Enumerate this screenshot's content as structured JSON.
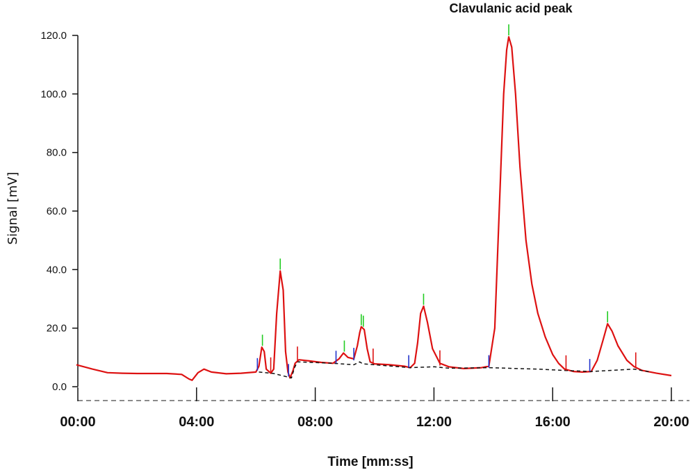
{
  "chart_data": {
    "type": "line",
    "title": "",
    "xlabel": "Time [mm:ss]",
    "ylabel": "Signal [mV]",
    "annotation": "Clavulanic acid peak",
    "xlim": [
      0,
      20
    ],
    "ylim": [
      0,
      120
    ],
    "x_ticks": [
      {
        "x": 0,
        "label": "00:00"
      },
      {
        "x": 4,
        "label": "04:00"
      },
      {
        "x": 8,
        "label": "08:00"
      },
      {
        "x": 12,
        "label": "12:00"
      },
      {
        "x": 16,
        "label": "16:00"
      },
      {
        "x": 20,
        "label": "20:00"
      }
    ],
    "y_ticks": [
      {
        "y": 0,
        "label": "0.0"
      },
      {
        "y": 20,
        "label": "20.0"
      },
      {
        "y": 40,
        "label": "40.0"
      },
      {
        "y": 60,
        "label": "60.0"
      },
      {
        "y": 80,
        "label": "80.0"
      },
      {
        "y": 100,
        "label": "100.0"
      },
      {
        "y": 120,
        "label": "120.0"
      }
    ],
    "colors": {
      "signal": "#dd1111",
      "baseline": "#111111",
      "peak_start": "#2233cc",
      "peak_apex": "#22cc22",
      "peak_end": "#dd1111"
    },
    "series": [
      {
        "style": "solid",
        "points": [
          [
            -0.05,
            7.5
          ],
          [
            0.5,
            6.0
          ],
          [
            1.0,
            4.8
          ],
          [
            1.5,
            4.6
          ],
          [
            2.0,
            4.5
          ],
          [
            2.5,
            4.5
          ],
          [
            3.0,
            4.5
          ],
          [
            3.5,
            4.2
          ],
          [
            3.75,
            2.6
          ],
          [
            3.85,
            2.2
          ],
          [
            4.05,
            4.8
          ],
          [
            4.25,
            6.0
          ],
          [
            4.5,
            5.0
          ],
          [
            5.0,
            4.4
          ],
          [
            5.5,
            4.6
          ],
          [
            6.0,
            5.0
          ],
          [
            6.1,
            7.0
          ],
          [
            6.2,
            13.5
          ],
          [
            6.28,
            12.0
          ],
          [
            6.35,
            6.0
          ],
          [
            6.5,
            4.6
          ],
          [
            6.6,
            6.0
          ],
          [
            6.7,
            25.0
          ],
          [
            6.82,
            39.5
          ],
          [
            6.92,
            33.0
          ],
          [
            7.0,
            12.0
          ],
          [
            7.08,
            5.0
          ],
          [
            7.15,
            3.0
          ],
          [
            7.25,
            5.5
          ],
          [
            7.32,
            8.0
          ],
          [
            7.45,
            9.2
          ],
          [
            7.8,
            8.8
          ],
          [
            8.2,
            8.3
          ],
          [
            8.6,
            8.0
          ],
          [
            8.8,
            9.5
          ],
          [
            8.95,
            11.5
          ],
          [
            9.1,
            10.0
          ],
          [
            9.3,
            9.5
          ],
          [
            9.42,
            14.0
          ],
          [
            9.5,
            18.5
          ],
          [
            9.55,
            20.5
          ],
          [
            9.65,
            19.5
          ],
          [
            9.75,
            13.0
          ],
          [
            9.85,
            8.5
          ],
          [
            10.0,
            7.8
          ],
          [
            10.5,
            7.5
          ],
          [
            11.0,
            7.0
          ],
          [
            11.2,
            6.5
          ],
          [
            11.35,
            8.0
          ],
          [
            11.45,
            15.0
          ],
          [
            11.55,
            25.0
          ],
          [
            11.65,
            27.5
          ],
          [
            11.78,
            22.0
          ],
          [
            11.95,
            13.0
          ],
          [
            12.2,
            8.0
          ],
          [
            12.5,
            6.8
          ],
          [
            13.0,
            6.2
          ],
          [
            13.6,
            6.5
          ],
          [
            13.85,
            7.0
          ],
          [
            14.05,
            20.0
          ],
          [
            14.2,
            60.0
          ],
          [
            14.35,
            100.0
          ],
          [
            14.45,
            115.0
          ],
          [
            14.52,
            119.5
          ],
          [
            14.62,
            116.0
          ],
          [
            14.75,
            100.0
          ],
          [
            14.9,
            75.0
          ],
          [
            15.1,
            50.0
          ],
          [
            15.3,
            35.0
          ],
          [
            15.5,
            25.0
          ],
          [
            15.75,
            17.0
          ],
          [
            16.0,
            11.0
          ],
          [
            16.2,
            8.0
          ],
          [
            16.4,
            6.0
          ],
          [
            16.7,
            5.2
          ],
          [
            17.0,
            5.0
          ],
          [
            17.3,
            5.2
          ],
          [
            17.5,
            9.0
          ],
          [
            17.7,
            16.0
          ],
          [
            17.85,
            21.5
          ],
          [
            18.0,
            19.0
          ],
          [
            18.2,
            14.0
          ],
          [
            18.5,
            9.0
          ],
          [
            18.75,
            6.8
          ],
          [
            19.0,
            5.6
          ],
          [
            19.5,
            4.6
          ],
          [
            20.0,
            3.8
          ]
        ]
      },
      {
        "style": "dashed",
        "points": [
          [
            6.1,
            5.0
          ],
          [
            6.6,
            4.5
          ],
          [
            7.2,
            3.0
          ],
          [
            7.3,
            6.5
          ],
          [
            7.4,
            8.5
          ],
          [
            8.6,
            8.0
          ],
          [
            9.3,
            7.5
          ],
          [
            9.5,
            8.5
          ],
          [
            9.6,
            7.8
          ],
          [
            10.0,
            7.5
          ],
          [
            11.2,
            6.5
          ],
          [
            12.0,
            6.8
          ],
          [
            12.5,
            6.3
          ],
          [
            13.85,
            6.5
          ],
          [
            15.5,
            6.0
          ],
          [
            16.5,
            5.5
          ],
          [
            17.3,
            5.2
          ],
          [
            18.75,
            6.0
          ],
          [
            19.3,
            5.0
          ]
        ]
      }
    ],
    "peak_markers": [
      {
        "x": 6.05,
        "y": 5.5,
        "kind": "start"
      },
      {
        "x": 6.22,
        "y": 13.5,
        "kind": "apex"
      },
      {
        "x": 6.5,
        "y": 4.8,
        "kind": "end"
      },
      {
        "x": 6.82,
        "y": 39.5,
        "kind": "apex"
      },
      {
        "x": 7.1,
        "y": 3.5,
        "kind": "start"
      },
      {
        "x": 7.4,
        "y": 8.5,
        "kind": "end"
      },
      {
        "x": 8.7,
        "y": 8.0,
        "kind": "start"
      },
      {
        "x": 8.98,
        "y": 11.5,
        "kind": "apex"
      },
      {
        "x": 9.3,
        "y": 9.0,
        "kind": "start"
      },
      {
        "x": 9.55,
        "y": 20.5,
        "kind": "apex"
      },
      {
        "x": 9.62,
        "y": 20.0,
        "kind": "apex"
      },
      {
        "x": 9.95,
        "y": 7.8,
        "kind": "end"
      },
      {
        "x": 11.15,
        "y": 6.5,
        "kind": "start"
      },
      {
        "x": 11.65,
        "y": 27.5,
        "kind": "apex"
      },
      {
        "x": 12.2,
        "y": 7.2,
        "kind": "end"
      },
      {
        "x": 13.85,
        "y": 6.5,
        "kind": "start"
      },
      {
        "x": 14.52,
        "y": 119.5,
        "kind": "apex"
      },
      {
        "x": 16.45,
        "y": 5.5,
        "kind": "end"
      },
      {
        "x": 17.25,
        "y": 5.2,
        "kind": "start"
      },
      {
        "x": 17.85,
        "y": 21.5,
        "kind": "apex"
      },
      {
        "x": 18.8,
        "y": 6.5,
        "kind": "end"
      }
    ]
  }
}
